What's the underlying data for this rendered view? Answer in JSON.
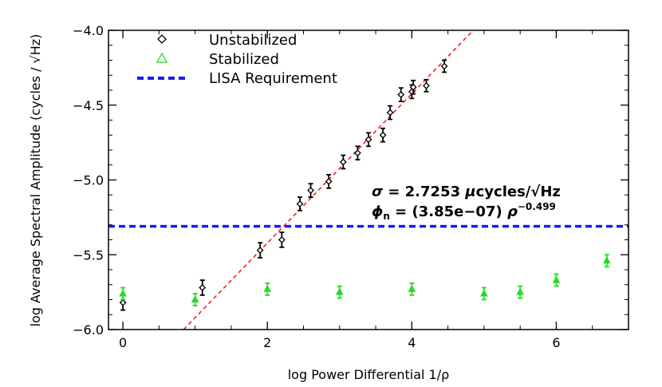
{
  "chart_data": {
    "type": "scatter",
    "title": "",
    "xlabel": "log Power Differential 1/ρ",
    "ylabel": "log Average Spectral Amplitude (cycles / √Hz)",
    "xlim": [
      -0.2,
      7.0
    ],
    "ylim": [
      -6.0,
      -4.0
    ],
    "x_ticks": [
      0,
      2,
      4,
      6
    ],
    "y_ticks": [
      -6.0,
      -5.5,
      -5.0,
      -4.5,
      -4.0
    ],
    "x_tick_labels": [
      "0",
      "2",
      "4",
      "6"
    ],
    "y_tick_labels": [
      "−6.0",
      "−5.5",
      "−5.0",
      "−4.5",
      "−4.0"
    ],
    "grid": false,
    "legend_position": "top-left",
    "legend": [
      {
        "label": "Unstabilized",
        "symbol": "diamond",
        "color": "#000000"
      },
      {
        "label": "Stabilized",
        "symbol": "triangle",
        "color": "#22dd22"
      },
      {
        "label": "LISA Requirement",
        "symbol": "dashed-line",
        "color": "#1a1aff"
      }
    ],
    "series": [
      {
        "name": "Unstabilized",
        "color": "#000000",
        "marker": "diamond",
        "points": [
          {
            "x": 0.0,
            "y": -5.82,
            "err": 0.05
          },
          {
            "x": 1.1,
            "y": -5.72,
            "err": 0.05
          },
          {
            "x": 1.9,
            "y": -5.47,
            "err": 0.05
          },
          {
            "x": 2.2,
            "y": -5.4,
            "err": 0.05
          },
          {
            "x": 2.45,
            "y": -5.16,
            "err": 0.045
          },
          {
            "x": 2.6,
            "y": -5.07,
            "err": 0.045
          },
          {
            "x": 2.85,
            "y": -5.01,
            "err": 0.045
          },
          {
            "x": 3.05,
            "y": -4.88,
            "err": 0.045
          },
          {
            "x": 3.25,
            "y": -4.82,
            "err": 0.045
          },
          {
            "x": 3.4,
            "y": -4.73,
            "err": 0.045
          },
          {
            "x": 3.6,
            "y": -4.7,
            "err": 0.045
          },
          {
            "x": 3.7,
            "y": -4.55,
            "err": 0.045
          },
          {
            "x": 3.85,
            "y": -4.43,
            "err": 0.045
          },
          {
            "x": 4.0,
            "y": -4.41,
            "err": 0.045
          },
          {
            "x": 4.02,
            "y": -4.38,
            "err": 0.045
          },
          {
            "x": 4.2,
            "y": -4.37,
            "err": 0.04
          },
          {
            "x": 4.45,
            "y": -4.24,
            "err": 0.04
          }
        ]
      },
      {
        "name": "Stabilized",
        "color": "#22dd22",
        "marker": "triangle",
        "points": [
          {
            "x": 0.0,
            "y": -5.76,
            "err": 0.04
          },
          {
            "x": 1.0,
            "y": -5.8,
            "err": 0.04
          },
          {
            "x": 2.0,
            "y": -5.73,
            "err": 0.04
          },
          {
            "x": 3.0,
            "y": -5.75,
            "err": 0.04
          },
          {
            "x": 4.0,
            "y": -5.73,
            "err": 0.04
          },
          {
            "x": 5.0,
            "y": -5.76,
            "err": 0.04
          },
          {
            "x": 5.5,
            "y": -5.75,
            "err": 0.04
          },
          {
            "x": 6.0,
            "y": -5.67,
            "err": 0.04
          },
          {
            "x": 6.7,
            "y": -5.54,
            "err": 0.04
          }
        ]
      }
    ],
    "fit_line": {
      "color": "#ee2222",
      "style": "dashed",
      "x1": 0.84,
      "y1": -6.0,
      "x2": 4.85,
      "y2": -4.0
    },
    "requirement_line": {
      "color": "#1a1aff",
      "style": "dashed",
      "y": -5.31
    },
    "annotations": {
      "sigma_symbol": "σ",
      "sigma_text": " = 2.7253 ",
      "sigma_mu": "μ",
      "sigma_unit": "cycles/√Hz",
      "phi_symbol": "ϕ",
      "phi_sub": "n",
      "phi_text": " = (3.85e−07) ",
      "phi_rho": "ρ",
      "phi_exp": "−0.499"
    }
  }
}
